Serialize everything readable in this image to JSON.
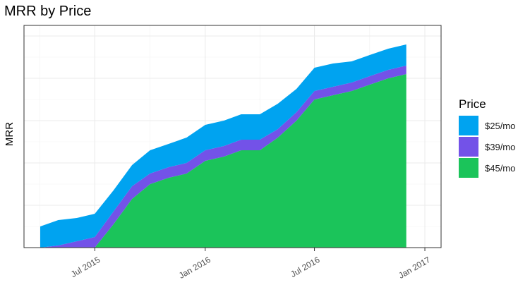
{
  "chart_data": {
    "type": "area",
    "stacked": true,
    "title": "MRR by Price",
    "xlabel": "",
    "ylabel": "MRR",
    "x_ticks": [
      "Jul 2015",
      "Jan 2016",
      "Jul 2016",
      "Jan 2017"
    ],
    "x_tick_dates": [
      "2015-07-01",
      "2016-01-01",
      "2016-07-01",
      "2017-01-01"
    ],
    "xlim": [
      "2015-03-05",
      "2017-01-28"
    ],
    "ylim": [
      0,
      105
    ],
    "y_ticks_visible": false,
    "grid": true,
    "legend": {
      "title": "Price",
      "position": "right"
    },
    "x": [
      "2015-04-01",
      "2015-05-01",
      "2015-06-01",
      "2015-07-01",
      "2015-08-01",
      "2015-09-01",
      "2015-10-01",
      "2015-11-01",
      "2015-12-01",
      "2016-01-01",
      "2016-02-01",
      "2016-03-01",
      "2016-04-01",
      "2016-05-01",
      "2016-06-01",
      "2016-07-01",
      "2016-08-01",
      "2016-09-01",
      "2016-10-01",
      "2016-11-01",
      "2016-12-01"
    ],
    "series": [
      {
        "name": "$45/mo",
        "color": "#1bc45a",
        "values": [
          0,
          0,
          0,
          0,
          11,
          23,
          30,
          33,
          35,
          41,
          43,
          46,
          46,
          52,
          60,
          70,
          72,
          74,
          77,
          80,
          82
        ]
      },
      {
        "name": "$39/mo",
        "color": "#7352e8",
        "values": [
          0,
          1,
          3,
          5,
          6,
          6,
          5,
          5,
          5,
          5,
          5,
          5,
          5,
          4,
          4,
          4,
          4,
          4,
          4,
          4,
          4
        ]
      },
      {
        "name": "$25/mo",
        "color": "#00a3f0",
        "values": [
          10,
          12,
          11,
          11,
          10,
          10,
          11,
          11,
          12,
          12,
          12,
          12,
          12,
          12,
          11,
          11,
          11,
          10,
          10,
          10,
          10
        ]
      }
    ]
  }
}
